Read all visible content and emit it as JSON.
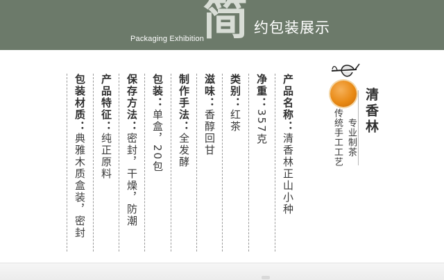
{
  "banner": {
    "english_label": "Packaging Exhibition",
    "big_char": "简",
    "title_rest": "约包装展示"
  },
  "brand": {
    "name": "清香林",
    "subtitle_line1": "专业制茶",
    "subtitle_line2": "传统手工工艺",
    "accent_color": "#e98a15"
  },
  "spec_columns": [
    {
      "label": "产品名称：",
      "value": "清香林正山小种"
    },
    {
      "label": "净重：",
      "value": "357克"
    },
    {
      "label": "类别：",
      "value": "红茶"
    },
    {
      "label": "滋味：",
      "value": "香醇回甘"
    },
    {
      "label": "制作手法：",
      "value": "全发酵"
    },
    {
      "label": "包装：",
      "value": "单盒，20包"
    },
    {
      "label": "保存方法：",
      "value": "密封，干燥，防潮"
    },
    {
      "label": "产品特征：",
      "value": "纯正原料"
    },
    {
      "label": "包装材质：",
      "value": "典雅木质盒装，密封"
    }
  ],
  "colors": {
    "banner_bg": "#6c7a6a",
    "text": "#3a3a3a"
  }
}
